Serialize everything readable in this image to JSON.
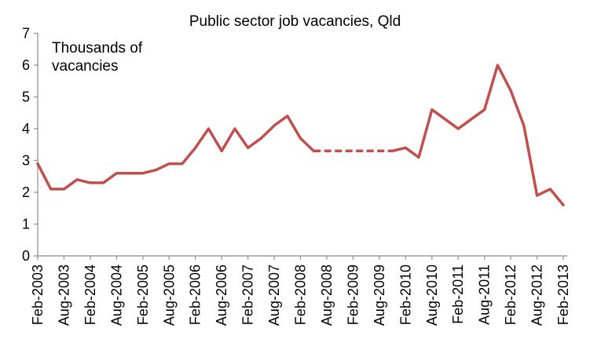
{
  "chart_data": {
    "type": "line",
    "title": "Public sector job vacancies, Qld",
    "ylabel": "Thousands of vacancies",
    "ylabel_line1": "Thousands of",
    "ylabel_line2": "vacancies",
    "xlabel": "",
    "ylim": [
      0,
      7
    ],
    "y_ticks": [
      0,
      1,
      2,
      3,
      4,
      5,
      6,
      7
    ],
    "grid": false,
    "legend_position": "none",
    "x_tick_every": 2,
    "x_tick_labels": [
      "Feb-2003",
      "Aug-2003",
      "Feb-2004",
      "Aug-2004",
      "Feb-2005",
      "Aug-2005",
      "Feb-2006",
      "Aug-2006",
      "Feb-2007",
      "Aug-2007",
      "Feb-2008",
      "Aug-2008",
      "Feb-2009",
      "Aug-2009",
      "Feb-2010",
      "Aug-2010",
      "Feb-2011",
      "Aug-2011",
      "Feb-2012",
      "Aug-2012",
      "Feb-2013"
    ],
    "categories": [
      "Feb-2003",
      "May-2003",
      "Aug-2003",
      "Nov-2003",
      "Feb-2004",
      "May-2004",
      "Aug-2004",
      "Nov-2004",
      "Feb-2005",
      "May-2005",
      "Aug-2005",
      "Nov-2005",
      "Feb-2006",
      "May-2006",
      "Aug-2006",
      "Nov-2006",
      "Feb-2007",
      "May-2007",
      "Aug-2007",
      "Nov-2007",
      "Feb-2008",
      "May-2008",
      "Aug-2008",
      "Nov-2008",
      "Feb-2009",
      "May-2009",
      "Aug-2009",
      "Nov-2009",
      "Feb-2010",
      "May-2010",
      "Aug-2010",
      "Nov-2010",
      "Feb-2011",
      "May-2011",
      "Aug-2011",
      "Nov-2011",
      "Feb-2012",
      "May-2012",
      "Aug-2012",
      "Nov-2012",
      "Feb-2013"
    ],
    "series": [
      {
        "name": "Public sector job vacancies, Qld",
        "color": "#c0504d",
        "values": [
          2.9,
          2.1,
          2.1,
          2.4,
          2.3,
          2.3,
          2.6,
          2.6,
          2.6,
          2.7,
          2.9,
          2.9,
          3.4,
          4.0,
          3.3,
          4.0,
          3.4,
          3.7,
          4.1,
          4.4,
          3.7,
          3.3,
          3.3,
          3.3,
          3.3,
          3.3,
          3.3,
          3.3,
          3.4,
          3.1,
          4.6,
          4.3,
          4.0,
          4.3,
          4.6,
          6.0,
          5.2,
          4.1,
          1.9,
          2.1,
          1.6
        ],
        "dashed_segment": {
          "from_label": "May-2008",
          "to_label": "Nov-2009",
          "from_index": 21,
          "to_index": 27,
          "style": "dashed"
        }
      }
    ],
    "colors": {
      "line": "#c0504d",
      "axis": "#9e9e9e",
      "text": "#000000",
      "background": "#ffffff"
    }
  }
}
